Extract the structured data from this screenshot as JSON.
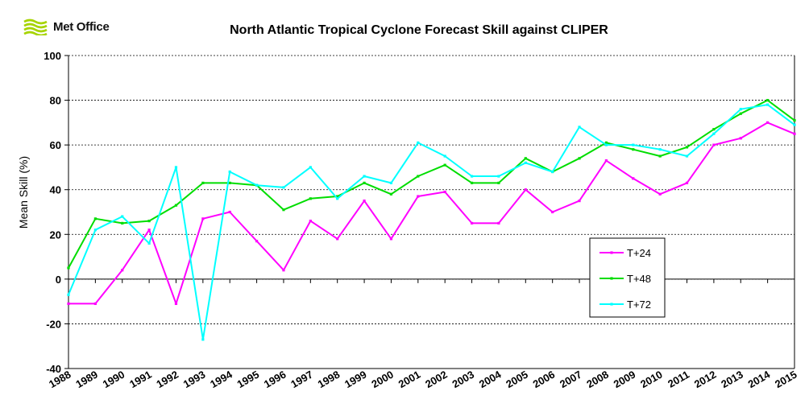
{
  "logo": {
    "text": "Met Office"
  },
  "chart_data": {
    "type": "line",
    "title": "North Atlantic Tropical Cyclone Forecast Skill against CLIPER",
    "xlabel": "",
    "ylabel": "Mean Skill  (%)",
    "ylim": [
      -40,
      100
    ],
    "yticks": [
      -40,
      -20,
      0,
      20,
      40,
      60,
      80,
      100
    ],
    "grid": true,
    "legend_position": "bottom-right",
    "categories": [
      "1988",
      "1989",
      "1990",
      "1991",
      "1992",
      "1993",
      "1994",
      "1995",
      "1996",
      "1997",
      "1998",
      "1999",
      "2000",
      "2001",
      "2002",
      "2003",
      "2004",
      "2005",
      "2006",
      "2007",
      "2008",
      "2009",
      "2010",
      "2011",
      "2012",
      "2013",
      "2014",
      "2015"
    ],
    "series": [
      {
        "name": "T+24",
        "color": "#ff00ff",
        "values": [
          -11,
          -11,
          4,
          22,
          -11,
          27,
          30,
          17,
          4,
          26,
          18,
          35,
          18,
          37,
          39,
          25,
          25,
          40,
          30,
          35,
          53,
          45,
          38,
          43,
          60,
          63,
          70,
          65
        ]
      },
      {
        "name": "T+48",
        "color": "#00dd00",
        "values": [
          5,
          27,
          25,
          26,
          33,
          43,
          43,
          42,
          31,
          36,
          37,
          43,
          38,
          46,
          51,
          43,
          43,
          54,
          48,
          54,
          61,
          58,
          55,
          59,
          67,
          74,
          80,
          71
        ]
      },
      {
        "name": "T+72",
        "color": "#00ffff",
        "values": [
          -7,
          22,
          28,
          16,
          50,
          -27,
          48,
          42,
          41,
          50,
          36,
          46,
          43,
          61,
          55,
          46,
          46,
          52,
          48,
          68,
          60,
          60,
          58,
          55,
          65,
          76,
          78,
          69
        ]
      }
    ]
  }
}
